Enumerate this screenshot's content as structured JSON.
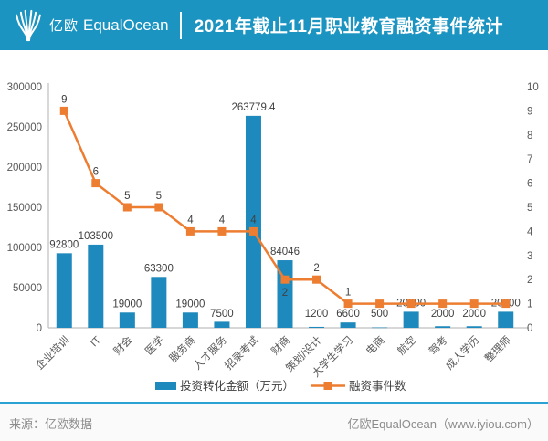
{
  "header": {
    "logo_cn": "亿欧",
    "logo_en": "EqualOcean",
    "title": "2021年截止11月职业教育融资事件统计"
  },
  "footer": {
    "source": "来源：亿欧数据",
    "site": "亿欧EqualOcean（www.iyiou.com）"
  },
  "colors": {
    "header_bg": "#1B94C1",
    "bar": "#1E89BC",
    "line": "#ED7D31",
    "separator": "#2BA2D4",
    "axis_text": "#595959",
    "label_text": "#404040",
    "axis_line": "#BFBFBF",
    "footer_text": "#8C8C8C",
    "footer_bg": "#FAFAFA"
  },
  "chart_data": {
    "type": "bar",
    "subtype": "combo-bar-line",
    "title": "2021年截止11月职业教育融资事件统计",
    "grid": false,
    "legend_position": "bottom",
    "categories": [
      "企业培训",
      "IT",
      "财会",
      "医学",
      "服务商",
      "人才服务",
      "招录考试",
      "财商",
      "策划/设计",
      "大学生学习",
      "电商",
      "航空",
      "驾考",
      "成人学历",
      "整理师"
    ],
    "series": [
      {
        "name": "投资转化金额（万元）",
        "chart": "bar",
        "axis": "left",
        "values": [
          92800,
          103500,
          19000,
          63300,
          19000,
          7500,
          263779.4,
          84046,
          1200,
          6600,
          500,
          20000,
          2000,
          2000,
          20000
        ],
        "data_labels": [
          "92800",
          "103500",
          "19000",
          "63300",
          "19000",
          "7500",
          "263779.4",
          "84046",
          "1200",
          "6600",
          "500",
          "20000",
          "2000",
          "2000",
          "20000"
        ]
      },
      {
        "name": "融资事件数",
        "chart": "line",
        "axis": "right",
        "values": [
          9,
          6,
          5,
          5,
          4,
          4,
          4,
          2,
          2,
          1,
          1,
          1,
          1,
          1,
          1
        ],
        "data_labels": [
          "9",
          "6",
          "5",
          "5",
          "4",
          "4",
          "4",
          "2",
          "2",
          "1",
          "",
          "",
          "",
          "",
          ""
        ],
        "label_pos": [
          "above",
          "above",
          "above",
          "above",
          "above",
          "above",
          "above",
          "below",
          "above",
          "above",
          "none",
          "none",
          "none",
          "none",
          "none"
        ]
      }
    ],
    "left_axis": {
      "min": 0,
      "max": 300000,
      "step": 50000,
      "ticks": [
        "0",
        "50000",
        "100000",
        "150000",
        "200000",
        "250000",
        "300000"
      ]
    },
    "right_axis": {
      "min": 0,
      "max": 10,
      "step": 1,
      "ticks": [
        "0",
        "1",
        "2",
        "3",
        "4",
        "5",
        "6",
        "7",
        "8",
        "9",
        "10"
      ]
    }
  }
}
